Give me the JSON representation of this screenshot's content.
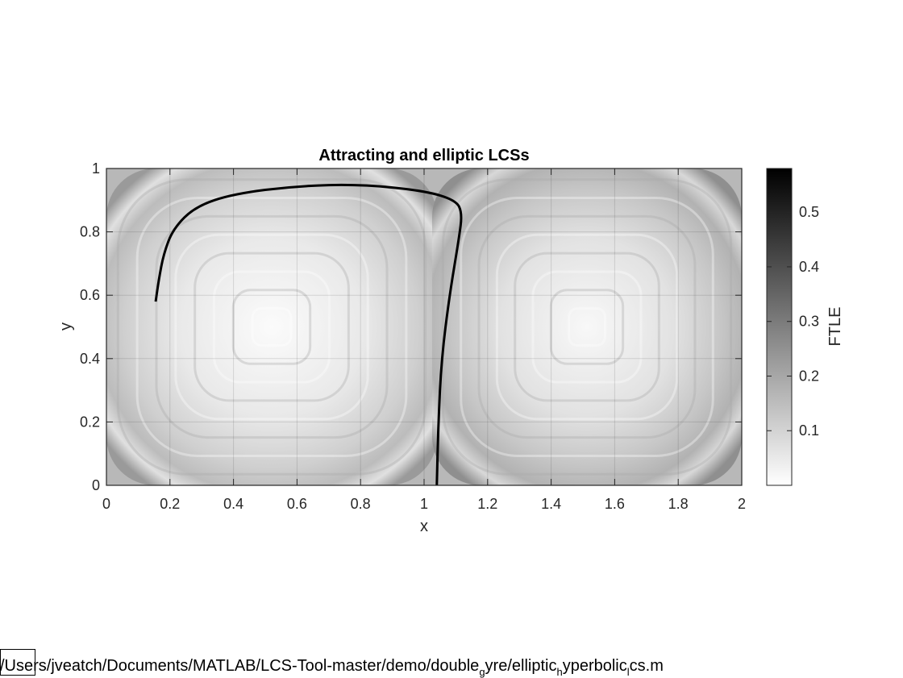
{
  "chart_data": {
    "type": "heatmap",
    "title": "Attracting and elliptic LCSs",
    "xlabel": "x",
    "ylabel": "y",
    "xlim": [
      0,
      2
    ],
    "ylim": [
      0,
      1
    ],
    "xticks": [
      "0",
      "0.2",
      "0.4",
      "0.6",
      "0.8",
      "1",
      "1.2",
      "1.4",
      "1.6",
      "1.8",
      "2"
    ],
    "yticks": [
      "0",
      "0.2",
      "0.4",
      "0.6",
      "0.8",
      "1"
    ],
    "grid": true,
    "colormap": "gray (reversed, white = low)",
    "colorbar": {
      "label": "FTLE",
      "range": [
        0,
        0.58
      ],
      "ticks": [
        "0.1",
        "0.2",
        "0.3",
        "0.4",
        "0.5"
      ]
    },
    "lcs_curve": {
      "color": "#000000",
      "points": [
        [
          1.04,
          0.0
        ],
        [
          1.045,
          0.2
        ],
        [
          1.055,
          0.4
        ],
        [
          1.08,
          0.6
        ],
        [
          1.11,
          0.78
        ],
        [
          1.12,
          0.86
        ],
        [
          1.1,
          0.9
        ],
        [
          1.0,
          0.93
        ],
        [
          0.8,
          0.95
        ],
        [
          0.6,
          0.945
        ],
        [
          0.4,
          0.92
        ],
        [
          0.28,
          0.88
        ],
        [
          0.21,
          0.81
        ],
        [
          0.18,
          0.73
        ],
        [
          0.165,
          0.65
        ],
        [
          0.155,
          0.58
        ]
      ]
    }
  },
  "footer": {
    "path_parts": [
      {
        "text": "/Users/jveatch/Documents/MATLAB/LCS-Tool-master/demo/double"
      },
      {
        "sub": "g"
      },
      {
        "text": "yre/elliptic"
      },
      {
        "sub": "h"
      },
      {
        "text": "yperbolic"
      },
      {
        "sub": "l"
      },
      {
        "text": "cs.m"
      }
    ]
  }
}
